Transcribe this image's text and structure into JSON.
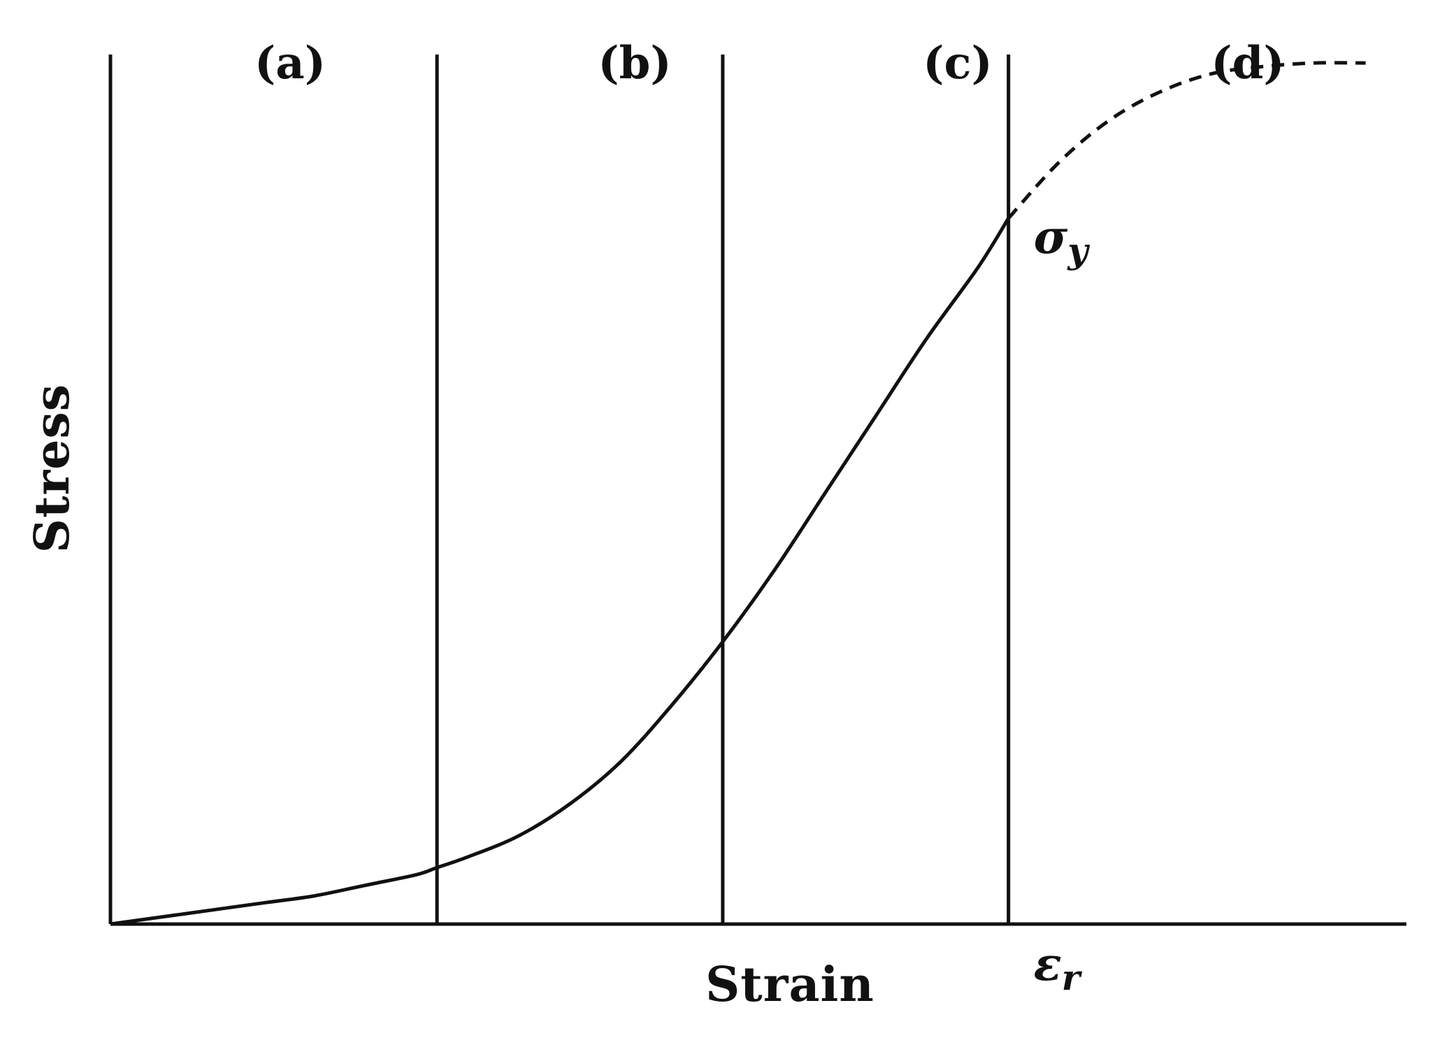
{
  "chart_data": {
    "type": "line",
    "title": "",
    "xlabel": "Strain",
    "ylabel": "Stress",
    "grid": false,
    "legend": "none",
    "xlim": [
      0,
      1.27
    ],
    "ylim": [
      0,
      1.23
    ],
    "regions": [
      {
        "label": "(a)",
        "x_start": 0.0,
        "x_end": 0.32
      },
      {
        "label": "(b)",
        "x_start": 0.32,
        "x_end": 0.6
      },
      {
        "label": "(c)",
        "x_start": 0.6,
        "x_end": 0.88
      },
      {
        "label": "(d)",
        "x_start": 0.88,
        "x_end": 1.27
      }
    ],
    "boundaries_x": [
      0.32,
      0.6,
      0.88
    ],
    "series": [
      {
        "style": "solid",
        "x": [
          0.0,
          0.05,
          0.1,
          0.15,
          0.2,
          0.25,
          0.3,
          0.32,
          0.35,
          0.4,
          0.45,
          0.5,
          0.55,
          0.6,
          0.65,
          0.7,
          0.75,
          0.8,
          0.85,
          0.88
        ],
        "y": [
          0.0,
          0.01,
          0.02,
          0.03,
          0.04,
          0.055,
          0.07,
          0.08,
          0.095,
          0.125,
          0.17,
          0.23,
          0.31,
          0.4,
          0.5,
          0.61,
          0.72,
          0.83,
          0.93,
          1.0
        ]
      },
      {
        "style": "dashed",
        "x": [
          0.88,
          0.93,
          0.98,
          1.03,
          1.08,
          1.13,
          1.18,
          1.23
        ],
        "y": [
          1.0,
          1.08,
          1.14,
          1.18,
          1.205,
          1.215,
          1.22,
          1.22
        ]
      }
    ],
    "annotations": [
      {
        "base": "σ",
        "sub": "y",
        "at_x": 0.88,
        "at_y": 1.0
      },
      {
        "base": "ε",
        "sub": "r",
        "at_x": 0.88,
        "at_y": 0.0
      }
    ],
    "line_color": "#111111",
    "background": "#ffffff"
  }
}
